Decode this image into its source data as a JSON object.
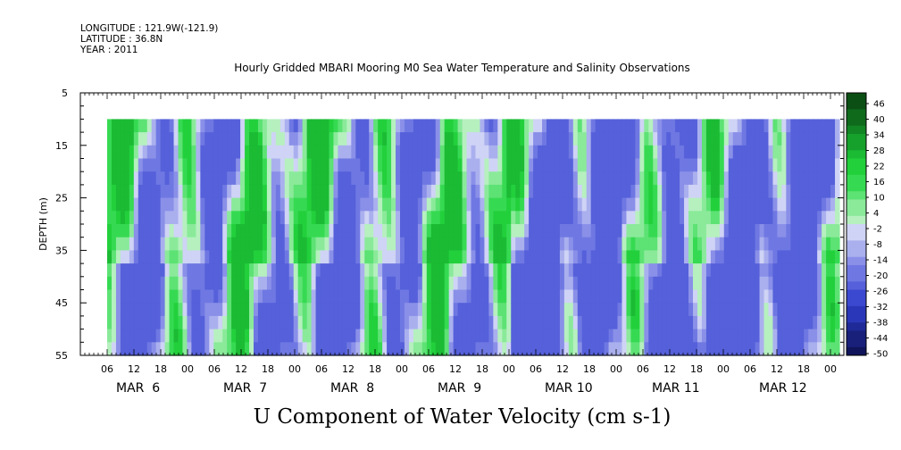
{
  "header": {
    "longitude": "LONGITUDE : 121.9W(-121.9)",
    "latitude": "LATITUDE : 36.8N",
    "year": "YEAR : 2011"
  },
  "chart_data": {
    "type": "heatmap",
    "title": "Hourly Gridded MBARI Mooring M0 Sea Water Temperature and Salinity Observations",
    "bottom_title": "U Component of Water Velocity (cm s-1)",
    "ylabel": "DEPTH (m)",
    "y_axis": {
      "range": [
        5,
        55
      ],
      "inverted": true,
      "tick_labels": [
        "5",
        "15",
        "25",
        "35",
        "45",
        "55"
      ],
      "tick_values": [
        5,
        15,
        25,
        35,
        45,
        55
      ],
      "minor_step": 2.5
    },
    "x_axis": {
      "range_hours": [
        0,
        171
      ],
      "hour_tick_labels": [
        "06",
        "12",
        "18",
        "00",
        "06",
        "12",
        "18",
        "00",
        "06",
        "12",
        "18",
        "00",
        "06",
        "12",
        "18",
        "00",
        "06",
        "12",
        "18",
        "00",
        "06",
        "12",
        "18",
        "00",
        "06",
        "12",
        "18",
        "00"
      ],
      "day_labels": [
        "MAR  6",
        "MAR  7",
        "MAR  8",
        "MAR  9",
        "MAR 10",
        "MAR 11",
        "MAR 12"
      ]
    },
    "data_extent": {
      "depth_range": [
        10,
        55
      ],
      "time_start_hour": 6
    },
    "colorbar": {
      "labels": [
        "46",
        "40",
        "34",
        "28",
        "22",
        "16",
        "10",
        "4",
        "-2",
        "-8",
        "-14",
        "-20",
        "-26",
        "-32",
        "-38",
        "-44",
        "-50"
      ],
      "colors": [
        "#0b4f14",
        "#0f6a1c",
        "#128524",
        "#16a02c",
        "#1bbb34",
        "#22d03c",
        "#36da52",
        "#5de274",
        "#8aea9a",
        "#b6f0bf",
        "#cfd3f5",
        "#aab0ee",
        "#8a90e8",
        "#6f78e2",
        "#5560da",
        "#3b49d0",
        "#2a37b8",
        "#1f2a98",
        "#18207a",
        "#10145a"
      ],
      "cells": 32
    }
  }
}
